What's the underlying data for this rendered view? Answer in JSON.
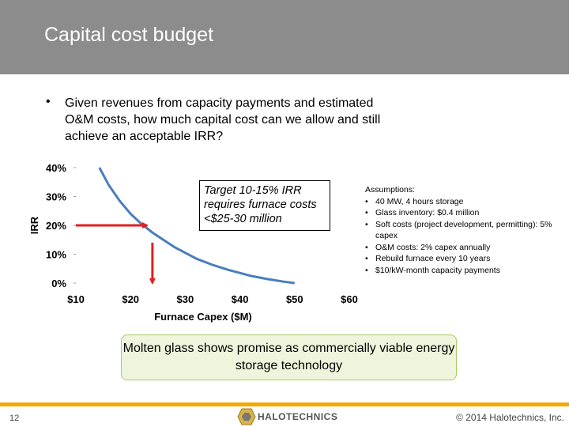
{
  "slide": {
    "title": "Capital cost budget",
    "bullet": "Given revenues from capacity payments and estimated O&M costs, how much capital cost can we allow and still achieve an acceptable IRR?",
    "callout": "Target 10-15% IRR requires furnace costs <$25-30 million",
    "assumptions": {
      "heading": "Assumptions:",
      "items": [
        "40 MW, 4 hours storage",
        "Glass inventory: $0.4 million",
        "Soft costs (project development, permitting): 5% capex",
        "O&M costs: 2% capex annually",
        "Rebuild furnace every 10 years",
        "$10/kW-month capacity payments"
      ]
    },
    "summary": "Molten glass shows promise as commercially viable energy storage technology",
    "footer": {
      "page_number": "12",
      "copyright": "© 2014 Halotechnics, Inc.",
      "logo_text": "HALOTECHNICS"
    }
  },
  "colors": {
    "header": "#8c8c8c",
    "curve": "#4a7ebb",
    "arrow": "#e02020",
    "accent_rule": "#f2a900",
    "summary_fill": "#eef5dc",
    "summary_border": "#a9cc64"
  },
  "chart_data": {
    "type": "line",
    "xlabel": "Furnace Capex ($M)",
    "ylabel": "IRR",
    "xlim": [
      10,
      60
    ],
    "ylim": [
      0,
      0.4
    ],
    "x_ticks": [
      10,
      20,
      30,
      40,
      50,
      60
    ],
    "x_tick_labels": [
      "$10",
      "$20",
      "$30",
      "$40",
      "$50",
      "$60"
    ],
    "y_ticks": [
      0,
      0.1,
      0.2,
      0.3,
      0.4
    ],
    "y_tick_labels": [
      "0%",
      "10%",
      "20%",
      "30%",
      "40%"
    ],
    "grid": false,
    "series": [
      {
        "x": [
          14.3,
          16,
          18,
          20,
          22,
          24,
          26,
          28,
          30,
          32,
          35,
          38,
          40,
          42,
          45,
          48,
          50
        ],
        "y": [
          0.4,
          0.34,
          0.285,
          0.24,
          0.205,
          0.175,
          0.15,
          0.125,
          0.105,
          0.085,
          0.063,
          0.045,
          0.035,
          0.025,
          0.014,
          0.005,
          0.0
        ]
      }
    ],
    "annotations": [
      {
        "type": "arrow",
        "from": [
          10,
          0.2
        ],
        "to": [
          23,
          0.2
        ]
      },
      {
        "type": "arrow",
        "from": [
          24,
          0.14
        ],
        "to": [
          24,
          0.0
        ]
      }
    ]
  }
}
